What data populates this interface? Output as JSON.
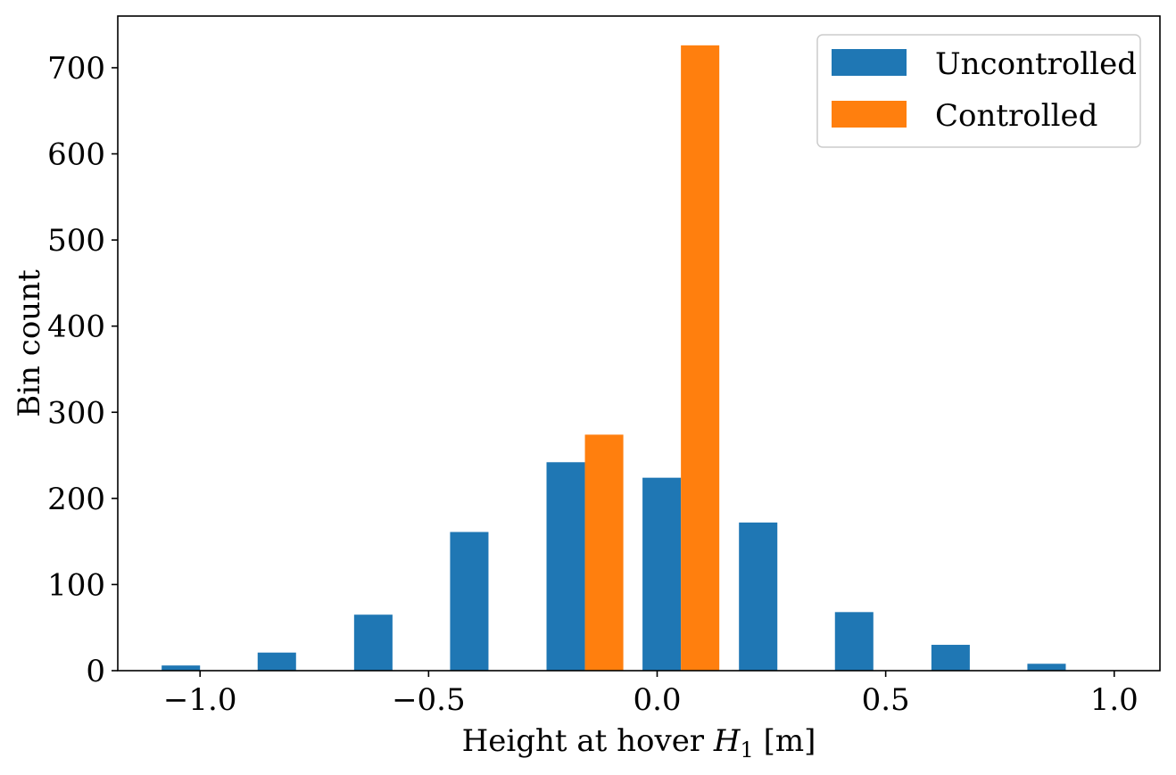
{
  "chart_data": {
    "type": "bar",
    "title": "",
    "xlabel": "Height at hover H_1 [m]",
    "xlabel_parts": {
      "prefix": "Height at hover ",
      "var": "H",
      "sub": "1",
      "suffix": " [m]"
    },
    "ylabel": "Bin count",
    "xlim": [
      -1.18,
      1.1
    ],
    "ylim": [
      0,
      760
    ],
    "x_ticks": [
      -1.0,
      -0.5,
      0.0,
      0.5,
      1.0
    ],
    "x_tick_labels": [
      "−1.0",
      "−0.5",
      "0.0",
      "0.5",
      "1.0"
    ],
    "y_ticks": [
      0,
      100,
      200,
      300,
      400,
      500,
      600,
      700
    ],
    "y_tick_labels": [
      "0",
      "100",
      "200",
      "300",
      "400",
      "500",
      "600",
      "700"
    ],
    "legend_position": "top-right",
    "grid": false,
    "series": [
      {
        "name": "Uncontrolled",
        "color": "#1f77b4",
        "bars": [
          {
            "x0": -1.084,
            "x1": -1.0,
            "value": 6
          },
          {
            "x0": -0.874,
            "x1": -0.79,
            "value": 21
          },
          {
            "x0": -0.663,
            "x1": -0.579,
            "value": 65
          },
          {
            "x0": -0.453,
            "x1": -0.369,
            "value": 161
          },
          {
            "x0": -0.242,
            "x1": -0.158,
            "value": 242
          },
          {
            "x0": -0.032,
            "x1": 0.052,
            "value": 224
          },
          {
            "x0": 0.179,
            "x1": 0.263,
            "value": 172
          },
          {
            "x0": 0.389,
            "x1": 0.473,
            "value": 68
          },
          {
            "x0": 0.6,
            "x1": 0.684,
            "value": 30
          },
          {
            "x0": 0.81,
            "x1": 0.894,
            "value": 8
          }
        ]
      },
      {
        "name": "Controlled",
        "color": "#ff7f0e",
        "bars": [
          {
            "x0": -0.158,
            "x1": -0.074,
            "value": 274
          },
          {
            "x0": 0.052,
            "x1": 0.136,
            "value": 726
          }
        ]
      }
    ]
  }
}
